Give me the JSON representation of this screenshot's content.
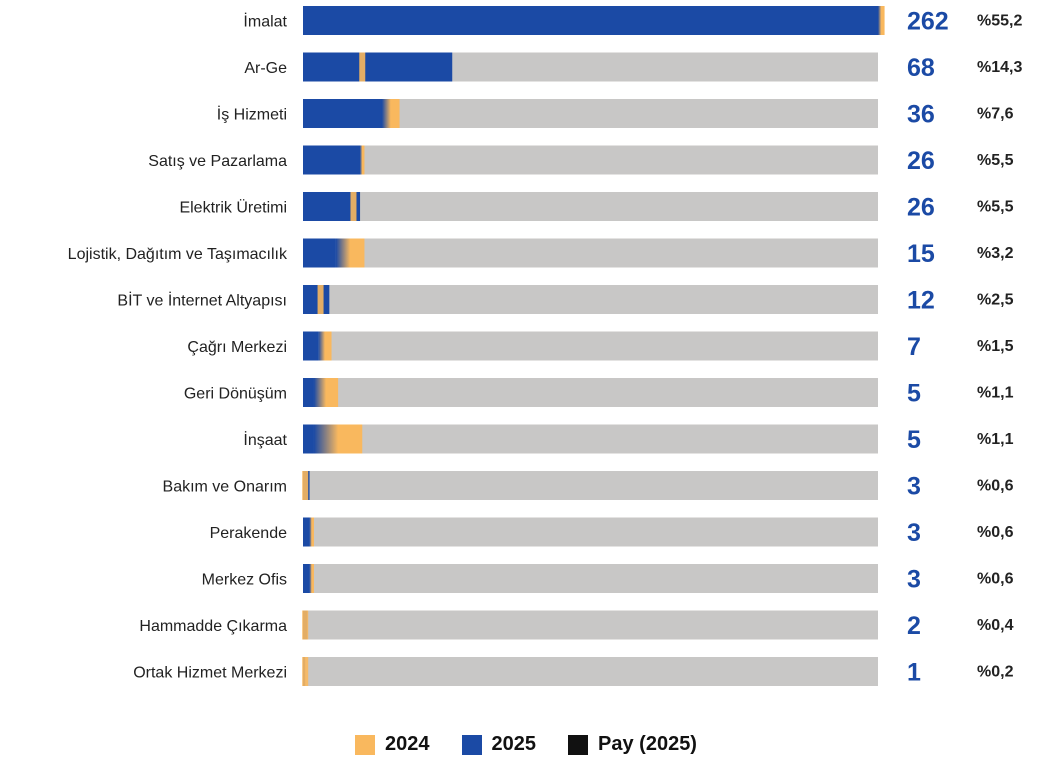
{
  "colors": {
    "y2024": "#F9B85E",
    "y2025": "#1B4AA5",
    "share": "#111111",
    "track": "#C8C7C6",
    "value_text": "#1B4AA5"
  },
  "chart_data": {
    "type": "bar",
    "orientation": "horizontal",
    "max": 262,
    "categories": [
      "İmalat",
      "Ar-Ge",
      "İş Hizmeti",
      "Satış ve Pazarlama",
      "Elektrik Üretimi",
      "Lojistik, Dağıtım ve Taşımacılık",
      "BİT ve İnternet Altyapısı",
      "Çağrı Merkezi",
      "Geri Dönüşüm",
      "İnşaat",
      "Bakım ve Onarım",
      "Perakende",
      "Merkez Ofis",
      "Hammadde Çıkarma",
      "Ortak Hizmet Merkezi"
    ],
    "series": [
      {
        "name": "2024",
        "values": [
          265,
          27,
          44,
          28,
          23,
          28,
          8,
          13,
          16,
          27,
          1,
          5,
          5,
          1,
          1
        ]
      },
      {
        "name": "2025",
        "values": [
          262,
          68,
          36,
          26,
          26,
          15,
          12,
          7,
          5,
          5,
          3,
          3,
          3,
          2,
          1
        ]
      }
    ],
    "value_labels": [
      "262",
      "68",
      "36",
      "26",
      "26",
      "15",
      "12",
      "7",
      "5",
      "5",
      "3",
      "3",
      "3",
      "2",
      "1"
    ],
    "share_labels": [
      "%55,2",
      "%14,3",
      "%7,6",
      "%5,5",
      "%5,5",
      "%3,2",
      "%2,5",
      "%1,5",
      "%1,1",
      "%1,1",
      "%0,6",
      "%0,6",
      "%0,6",
      "%0,4",
      "%0,2"
    ],
    "legend": [
      {
        "key": "y2024",
        "label": "2024"
      },
      {
        "key": "y2025",
        "label": "2025"
      },
      {
        "key": "share",
        "label": "Pay (2025)"
      }
    ]
  }
}
